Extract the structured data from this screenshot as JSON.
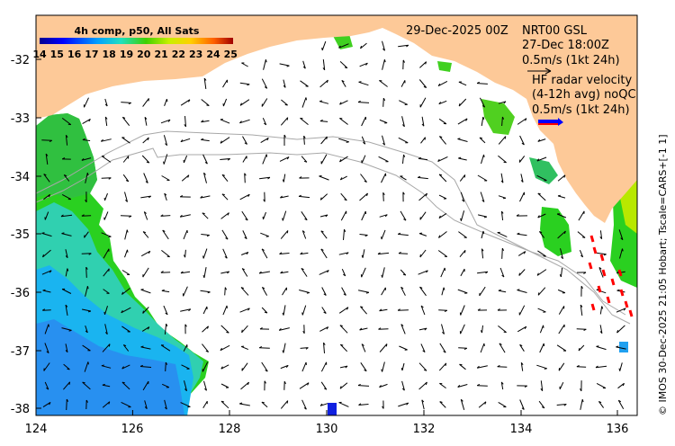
{
  "map": {
    "x_ticks": [
      "124",
      "126",
      "128",
      "130",
      "132",
      "134",
      "136"
    ],
    "y_ticks": [
      "-32",
      "-33",
      "-34",
      "-35",
      "-36",
      "-37",
      "-38"
    ],
    "colorbar_title": "4h comp, p50, All Sats",
    "colorbar_labels": [
      "14",
      "15",
      "16",
      "17",
      "18",
      "19",
      "20",
      "21",
      "22",
      "23",
      "24",
      "25"
    ],
    "colorbar_range": [
      14,
      25
    ],
    "date": "29-Dec-2025 00Z",
    "model_line1": "NRT00 GSL",
    "model_line2": "27-Dec 18:00Z",
    "model_scale": "0.5m/s (1kt 24h)",
    "radar_line1": "HF radar velocity",
    "radar_line2": "(4-12h avg) noQC",
    "radar_scale": "0.5m/s (1kt 24h)",
    "credit": "© IMOS 30-Dec-2025 21:05 Hobart; Tscale=CARS+[-1 1]",
    "colors": {
      "land": "#fdc998",
      "ocean": "#ffffff",
      "radar_arrow": "#ff0000",
      "radar_sample_blue": "#0000ff"
    }
  }
}
